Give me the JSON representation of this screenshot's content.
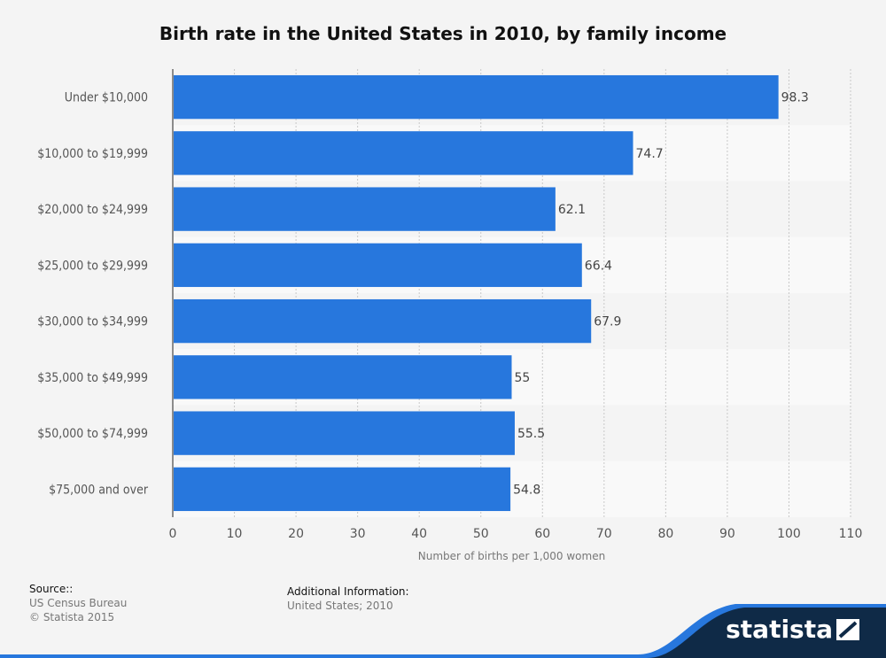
{
  "chart_data": {
    "type": "bar",
    "orientation": "horizontal",
    "title": "Birth rate in the United States in 2010, by family income",
    "categories": [
      "Under $10,000",
      "$10,000 to $19,999",
      "$20,000 to $24,999",
      "$25,000 to $29,999",
      "$30,000 to $34,999",
      "$35,000 to $49,999",
      "$50,000 to $74,999",
      "$75,000 and over"
    ],
    "values": [
      98.3,
      74.7,
      62.1,
      66.4,
      67.9,
      55,
      55.5,
      54.8
    ],
    "value_labels": [
      "98.3",
      "74.7",
      "62.1",
      "66.4",
      "67.9",
      "55",
      "55.5",
      "54.8"
    ],
    "xlabel": "Number of births per 1,000 women",
    "xlim": [
      0,
      110
    ],
    "xticks": [
      "0",
      "10",
      "20",
      "30",
      "40",
      "50",
      "60",
      "70",
      "80",
      "90",
      "100",
      "110"
    ],
    "grid": "vertical dotted",
    "bar_color": "#2777dd"
  },
  "footer": {
    "source_heading": "Source::",
    "source_lines": [
      "US Census Bureau",
      "© Statista 2015"
    ],
    "additional_heading": "Additional Information:",
    "additional_text": "United States; 2010"
  },
  "brand": {
    "name": "statista",
    "accent_color": "#2777dd",
    "dark_color": "#0f2a47"
  }
}
